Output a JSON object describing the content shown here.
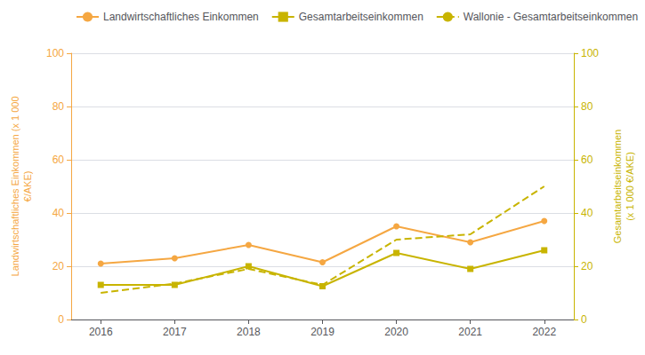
{
  "chart_data": {
    "type": "line",
    "x": [
      2016,
      2017,
      2018,
      2019,
      2020,
      2021,
      2022
    ],
    "xlim": [
      2015.6,
      2022.4
    ],
    "xticks": [
      2016,
      2017,
      2018,
      2019,
      2020,
      2021,
      2022
    ],
    "ylabel": "Landwirtschaftliches Einkommen (x 1 000\n€/AKE)",
    "y2label": "Gesamtarbeitseinkommen\n(x 1 000 €/AKE)",
    "ylim": [
      0,
      100
    ],
    "yticks": [
      0,
      20,
      40,
      60,
      80,
      100
    ],
    "y2lim": [
      0,
      100
    ],
    "y2ticks": [
      0,
      20,
      40,
      60,
      80,
      100
    ],
    "grid": true,
    "legend": "upper left",
    "series": [
      {
        "name": "Landwirtschaftliches Einkommen",
        "color": "#f5a742",
        "marker": "circle",
        "line_style": "solid",
        "values": [
          21,
          23,
          28,
          21.5,
          35,
          29,
          37
        ]
      },
      {
        "name": "Gesamtarbeitseinkommen",
        "color": "#c8b400",
        "marker": "square",
        "line_style": "solid",
        "axis": "y2",
        "values": [
          13,
          13,
          20,
          12.5,
          25,
          19,
          26
        ]
      },
      {
        "name": "Wallonie - Gesamtarbeitseinkommen",
        "color": "#c8b400",
        "line_style": "dashed",
        "axis": "y2",
        "values": [
          10,
          13.5,
          19,
          13,
          30,
          32,
          50
        ]
      }
    ]
  }
}
